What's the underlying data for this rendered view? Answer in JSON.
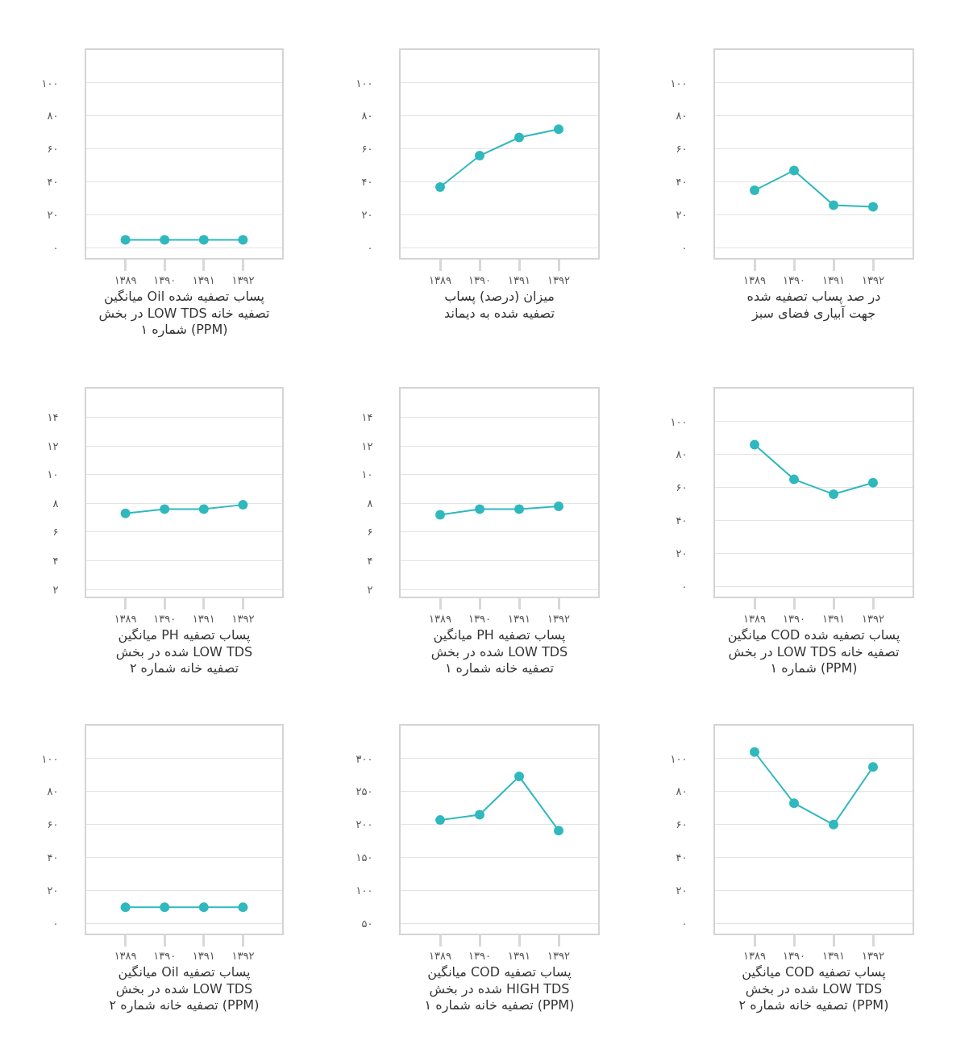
{
  "chart_data": [
    {
      "type": "line",
      "xlabel": "میانگین Oil پساب تصفیه شده\nدر بخش LOW TDS تصفیه خانه\nشماره ۱ (PPM)",
      "categories": [
        "۱۳۸۹",
        "۱۳۹۰",
        "۱۳۹۱",
        "۱۳۹۲"
      ],
      "values": [
        5,
        5,
        5,
        5
      ],
      "color": "#2fb8bd",
      "marker": "circle",
      "grid": "y",
      "ylim": [
        -6,
        120
      ],
      "yticks": [
        {
          "value": 0,
          "label": "۰"
        },
        {
          "value": 20,
          "label": "۲۰"
        },
        {
          "value": 40,
          "label": "۴۰"
        },
        {
          "value": 60,
          "label": "۶۰"
        },
        {
          "value": 80,
          "label": "۸۰"
        },
        {
          "value": 100,
          "label": "۱۰۰"
        }
      ]
    },
    {
      "type": "line",
      "xlabel": "میزان (درصد) پساب\nتصفیه شده به دیماند",
      "categories": [
        "۱۳۸۹",
        "۱۳۹۰",
        "۱۳۹۱",
        "۱۳۹۲"
      ],
      "values": [
        37,
        56,
        67,
        72
      ],
      "color": "#2fb8bd",
      "marker": "circle",
      "grid": "y",
      "ylim": [
        -6,
        120
      ],
      "yticks": [
        {
          "value": 0,
          "label": "۰"
        },
        {
          "value": 20,
          "label": "۲۰"
        },
        {
          "value": 40,
          "label": "۴۰"
        },
        {
          "value": 60,
          "label": "۶۰"
        },
        {
          "value": 80,
          "label": "۸۰"
        },
        {
          "value": 100,
          "label": "۱۰۰"
        }
      ]
    },
    {
      "type": "line",
      "xlabel": "در صد پساب تصفیه شده\nجهت آبیاری فضای سبز",
      "categories": [
        "۱۳۸۹",
        "۱۳۹۰",
        "۱۳۹۱",
        "۱۳۹۲"
      ],
      "values": [
        35,
        47,
        26,
        25
      ],
      "color": "#2fb8bd",
      "marker": "circle",
      "grid": "y",
      "ylim": [
        -6,
        120
      ],
      "yticks": [
        {
          "value": 0,
          "label": "۰"
        },
        {
          "value": 20,
          "label": "۲۰"
        },
        {
          "value": 40,
          "label": "۴۰"
        },
        {
          "value": 60,
          "label": "۶۰"
        },
        {
          "value": 80,
          "label": "۸۰"
        },
        {
          "value": 100,
          "label": "۱۰۰"
        }
      ]
    },
    {
      "type": "line",
      "xlabel": "میانگین PH پساب تصفیه\nشده در بخش LOW TDS\nتصفیه خانه شماره ۲",
      "categories": [
        "۱۳۸۹",
        "۱۳۹۰",
        "۱۳۹۱",
        "۱۳۹۲"
      ],
      "values": [
        7.3,
        7.6,
        7.6,
        7.9
      ],
      "color": "#2fb8bd",
      "marker": "circle",
      "grid": "y",
      "ylim": [
        1.5,
        16
      ],
      "yticks": [
        {
          "value": 2,
          "label": "۲"
        },
        {
          "value": 4,
          "label": "۴"
        },
        {
          "value": 6,
          "label": "۶"
        },
        {
          "value": 8,
          "label": "۸"
        },
        {
          "value": 10,
          "label": "۱۰"
        },
        {
          "value": 12,
          "label": "۱۲"
        },
        {
          "value": 14,
          "label": "۱۴"
        }
      ]
    },
    {
      "type": "line",
      "xlabel": "میانگین PH پساب تصفیه\nشده در بخش LOW TDS\nتصفیه خانه شماره ۱",
      "categories": [
        "۱۳۸۹",
        "۱۳۹۰",
        "۱۳۹۱",
        "۱۳۹۲"
      ],
      "values": [
        7.2,
        7.6,
        7.6,
        7.8
      ],
      "color": "#2fb8bd",
      "marker": "circle",
      "grid": "y",
      "ylim": [
        1.5,
        16
      ],
      "yticks": [
        {
          "value": 2,
          "label": "۲"
        },
        {
          "value": 4,
          "label": "۴"
        },
        {
          "value": 6,
          "label": "۶"
        },
        {
          "value": 8,
          "label": "۸"
        },
        {
          "value": 10,
          "label": "۱۰"
        },
        {
          "value": 12,
          "label": "۱۲"
        },
        {
          "value": 14,
          "label": "۱۴"
        }
      ]
    },
    {
      "type": "line",
      "xlabel": "میانگین COD پساب تصفیه شده\nدر بخش LOW TDS تصفیه خانه\nشماره ۱ (PPM)",
      "categories": [
        "۱۳۸۹",
        "۱۳۹۰",
        "۱۳۹۱",
        "۱۳۹۲"
      ],
      "values": [
        86,
        65,
        56,
        63
      ],
      "color": "#2fb8bd",
      "marker": "circle",
      "grid": "y",
      "ylim": [
        -6,
        120
      ],
      "yticks": [
        {
          "value": 0,
          "label": "۰"
        },
        {
          "value": 20,
          "label": "۲۰"
        },
        {
          "value": 40,
          "label": "۴۰"
        },
        {
          "value": 60,
          "label": "۶۰"
        },
        {
          "value": 80,
          "label": "۸۰"
        },
        {
          "value": 100,
          "label": "۱۰۰"
        }
      ]
    },
    {
      "type": "line",
      "xlabel": "میانگین Oil پساب تصفیه\nشده در بخش LOW TDS\nتصفیه خانه شماره ۲ (PPM)",
      "categories": [
        "۱۳۸۹",
        "۱۳۹۰",
        "۱۳۹۱",
        "۱۳۹۲"
      ],
      "values": [
        10,
        10,
        10,
        10
      ],
      "color": "#2fb8bd",
      "marker": "circle",
      "grid": "y",
      "ylim": [
        -6,
        120
      ],
      "yticks": [
        {
          "value": 0,
          "label": "۰"
        },
        {
          "value": 20,
          "label": "۲۰"
        },
        {
          "value": 40,
          "label": "۴۰"
        },
        {
          "value": 60,
          "label": "۶۰"
        },
        {
          "value": 80,
          "label": "۸۰"
        },
        {
          "value": 100,
          "label": "۱۰۰"
        }
      ]
    },
    {
      "type": "line",
      "xlabel": "میانگین COD پساب تصفیه\nشده در بخش HIGH TDS\nتصفیه خانه شماره ۱ (PPM)",
      "categories": [
        "۱۳۸۹",
        "۱۳۹۰",
        "۱۳۹۱",
        "۱۳۹۲"
      ],
      "values": [
        207,
        215,
        273,
        191
      ],
      "color": "#2fb8bd",
      "marker": "circle",
      "grid": "y",
      "ylim": [
        35,
        350
      ],
      "yticks": [
        {
          "value": 50,
          "label": "۵۰"
        },
        {
          "value": 100,
          "label": "۱۰۰"
        },
        {
          "value": 150,
          "label": "۱۵۰"
        },
        {
          "value": 200,
          "label": "۲۰۰"
        },
        {
          "value": 250,
          "label": "۲۵۰"
        },
        {
          "value": 300,
          "label": "۳۰۰"
        }
      ]
    },
    {
      "type": "line",
      "xlabel": "میانگین COD پساب تصفیه\nشده در بخش LOW TDS\nتصفیه خانه شماره ۲ (PPM)",
      "categories": [
        "۱۳۸۹",
        "۱۳۹۰",
        "۱۳۹۱",
        "۱۳۹۲"
      ],
      "values": [
        104,
        73,
        60,
        95
      ],
      "color": "#2fb8bd",
      "marker": "circle",
      "grid": "y",
      "ylim": [
        -6,
        120
      ],
      "yticks": [
        {
          "value": 0,
          "label": "۰"
        },
        {
          "value": 20,
          "label": "۲۰"
        },
        {
          "value": 40,
          "label": "۴۰"
        },
        {
          "value": 60,
          "label": "۶۰"
        },
        {
          "value": 80,
          "label": "۸۰"
        },
        {
          "value": 100,
          "label": "۱۰۰"
        }
      ]
    }
  ]
}
